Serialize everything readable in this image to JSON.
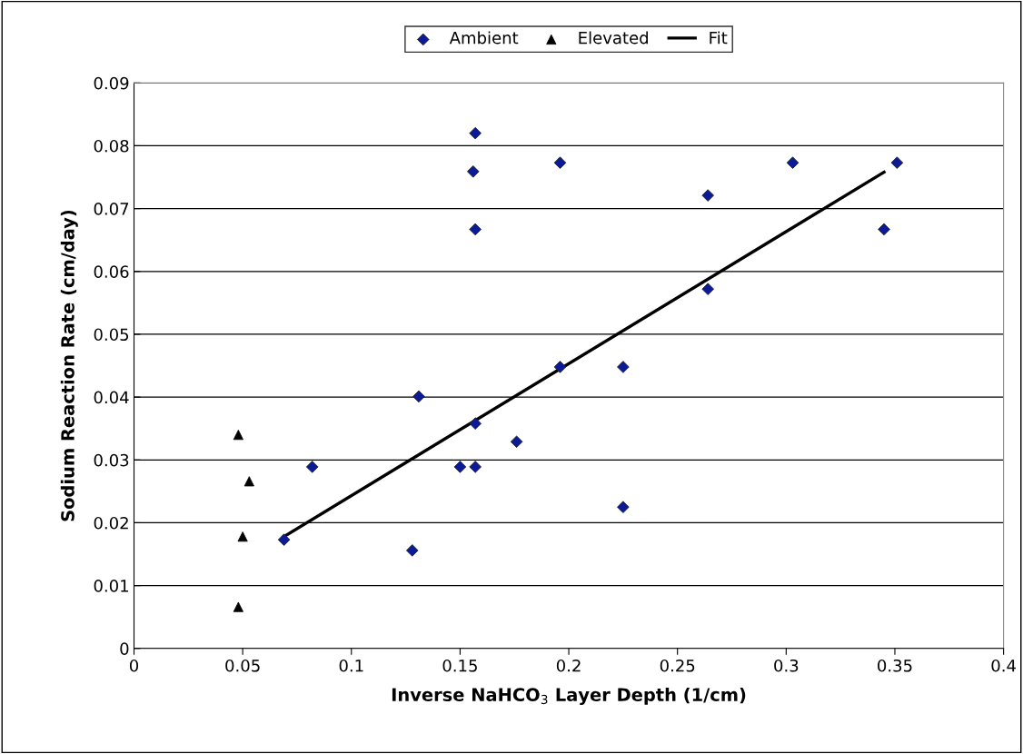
{
  "chart_data": {
    "type": "scatter",
    "xlabel": "Inverse NaHCO$_{3}$ Layer Depth (1/cm)",
    "ylabel": "Sodium Reaction Rate (cm/day)",
    "xlim": [
      0,
      0.4
    ],
    "ylim": [
      0,
      0.09
    ],
    "xticks": [
      0,
      0.05,
      0.1,
      0.15,
      0.2,
      0.25,
      0.3,
      0.35,
      0.4
    ],
    "yticks": [
      0,
      0.01,
      0.02,
      0.03,
      0.04,
      0.05,
      0.06,
      0.07,
      0.08,
      0.09
    ],
    "grid": "y",
    "legend": "top",
    "series": [
      {
        "name": "Ambient",
        "marker": "diamond",
        "color": "#0b1a96",
        "x": [
          0.069,
          0.082,
          0.128,
          0.131,
          0.15,
          0.157,
          0.157,
          0.157,
          0.156,
          0.157,
          0.176,
          0.196,
          0.196,
          0.225,
          0.225,
          0.264,
          0.264,
          0.303,
          0.345,
          0.351
        ],
        "values": [
          0.0173,
          0.0289,
          0.0156,
          0.0401,
          0.0289,
          0.0289,
          0.0358,
          0.0667,
          0.0759,
          0.082,
          0.0329,
          0.0448,
          0.0773,
          0.0448,
          0.0225,
          0.0572,
          0.0721,
          0.0773,
          0.0667,
          0.0773
        ]
      },
      {
        "name": "Elevated",
        "marker": "triangle",
        "color": "#000000",
        "x": [
          0.048,
          0.053,
          0.05,
          0.048
        ],
        "values": [
          0.034,
          0.0266,
          0.0178,
          0.0066
        ]
      },
      {
        "name": "Fit",
        "type": "line",
        "marker": "none",
        "line_style": "solid",
        "color": "#000000",
        "x": [
          0.069,
          0.345
        ],
        "values": [
          0.0178,
          0.0758
        ]
      }
    ]
  }
}
